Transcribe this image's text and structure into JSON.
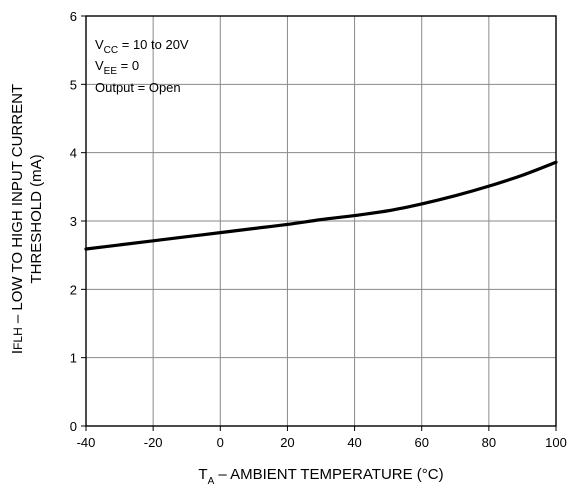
{
  "chart_data": {
    "type": "line",
    "xlabel_main": "T",
    "xlabel_sub": "A",
    "xlabel_rest": " – AMBIENT TEMPERATURE (°C)",
    "ylabel_line1_main": "I",
    "ylabel_line1_sub": "FLH",
    "ylabel_line1_rest": " – LOW TO HIGH INPUT CURRENT",
    "ylabel_line2": "THRESHOLD (mA)",
    "xlim": [
      -40,
      100
    ],
    "ylim": [
      0,
      6
    ],
    "x_ticks": [
      -40,
      -20,
      0,
      20,
      40,
      60,
      80,
      100
    ],
    "y_ticks": [
      0,
      1,
      2,
      3,
      4,
      5,
      6
    ],
    "grid": true,
    "series": [
      {
        "x": [
          -40,
          -30,
          -20,
          -10,
          0,
          10,
          20,
          30,
          40,
          50,
          60,
          70,
          80,
          90,
          100
        ],
        "y": [
          2.59,
          2.65,
          2.71,
          2.77,
          2.83,
          2.89,
          2.95,
          3.02,
          3.08,
          3.15,
          3.25,
          3.37,
          3.51,
          3.67,
          3.86
        ]
      }
    ],
    "annotations": {
      "line1_main": "V",
      "line1_sub": "CC",
      "line1_rest": " = 10 to 20V",
      "line2_main": "V",
      "line2_sub": "EE",
      "line2_rest": " = 0",
      "line3": "Output = Open"
    }
  }
}
